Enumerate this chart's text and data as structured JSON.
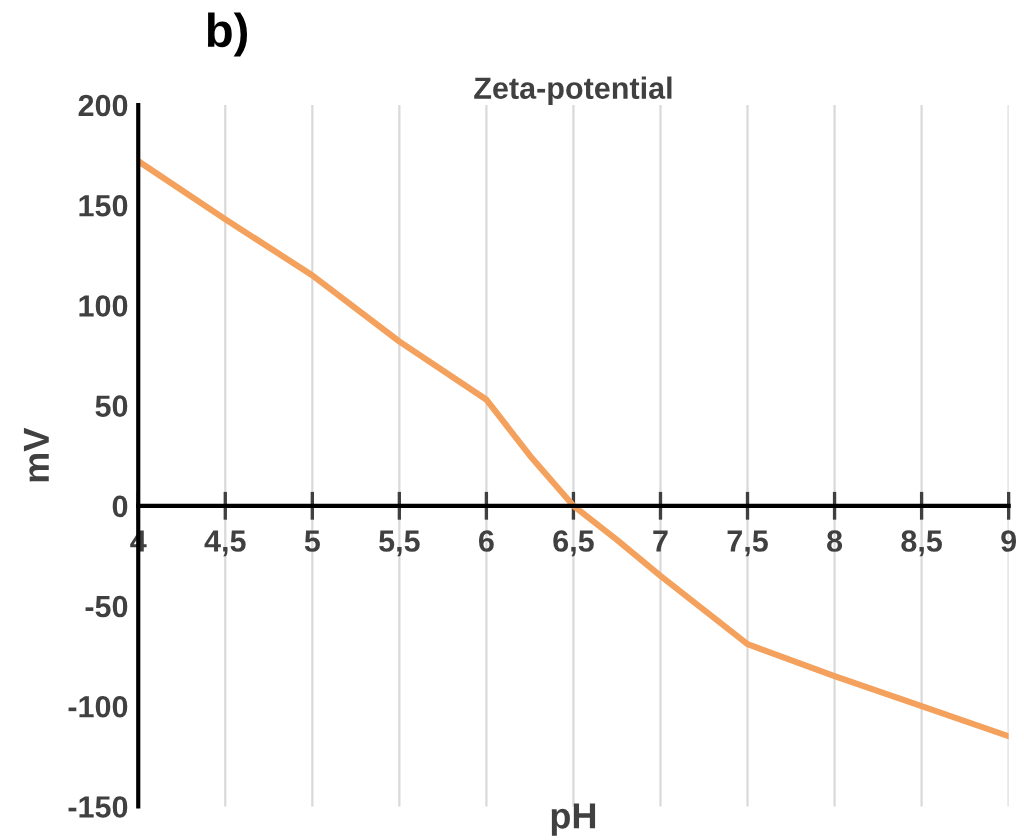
{
  "chart_data": {
    "type": "line",
    "title": "Zeta-potential",
    "xlabel": "pH",
    "ylabel": "mV",
    "annotations": [
      "b)"
    ],
    "x": [
      4,
      4.5,
      5,
      5.5,
      6,
      6.25,
      6.5,
      6.75,
      7,
      7.5,
      8,
      8.5,
      9
    ],
    "series": [
      {
        "color": "#f4a15d",
        "values": [
          172,
          143,
          115,
          82,
          53,
          25,
          0,
          -17,
          -35,
          -69,
          -85,
          -100,
          -115
        ]
      }
    ],
    "xlim": [
      4,
      9
    ],
    "xticks": [
      4,
      {
        "value": 4.5,
        "label": "4,5"
      },
      5,
      {
        "value": 5.5,
        "label": "5,5"
      },
      6,
      {
        "value": 6.5,
        "label": "6,5"
      },
      7,
      {
        "value": 7.5,
        "label": "7,5"
      },
      8,
      {
        "value": 8.5,
        "label": "8,5"
      },
      9
    ],
    "ylim": [
      -150,
      200
    ],
    "yticks": [
      -150,
      -100,
      -50,
      0,
      50,
      100,
      150,
      200
    ],
    "grid": "x",
    "marker": "none",
    "line_style": "solid"
  }
}
